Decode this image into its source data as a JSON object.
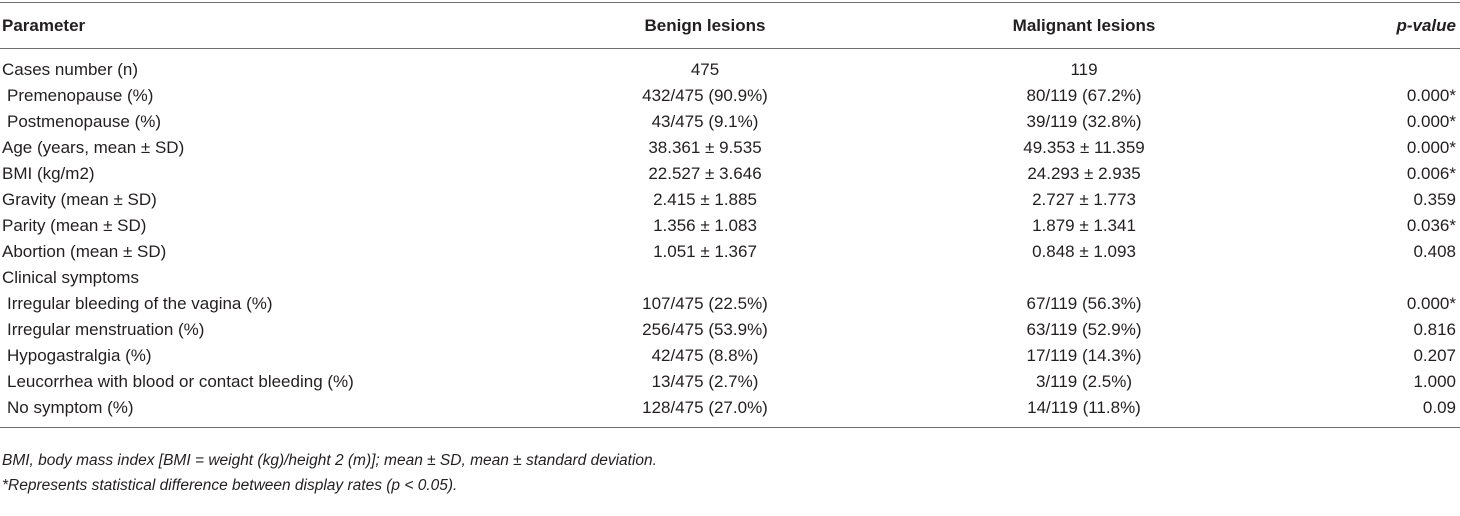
{
  "table": {
    "header": [
      "Parameter",
      "Benign lesions",
      "Malignant lesions",
      "p-value"
    ],
    "rows": [
      [
        "Cases number (n)",
        "475",
        "119"
      ],
      [
        "Premenopause (%)",
        "432/475 (90.9%)",
        "80/119 (67.2%)",
        "0.000*"
      ],
      [
        "Postmenopause (%)",
        "43/475 (9.1%)",
        "39/119 (32.8%)",
        "0.000*"
      ],
      [
        "Age (years, mean ± SD)",
        "38.361 ± 9.535",
        "49.353 ± 11.359",
        "0.000*"
      ],
      [
        "BMI (kg/m2)",
        "22.527 ± 3.646",
        "24.293 ± 2.935",
        "0.006*"
      ],
      [
        "Gravity (mean ± SD)",
        "2.415 ± 1.885",
        "2.727 ± 1.773",
        "0.359"
      ],
      [
        "Parity (mean ± SD)",
        "1.356 ± 1.083",
        "1.879 ± 1.341",
        "0.036*"
      ],
      [
        "Abortion (mean ± SD)",
        "1.051 ± 1.367",
        "0.848 ± 1.093",
        "0.408"
      ],
      [
        "Clinical symptoms"
      ],
      [
        "Irregular bleeding of the vagina (%)",
        "107/475 (22.5%)",
        "67/119 (56.3%)",
        "0.000*"
      ],
      [
        "Irregular menstruation (%)",
        "256/475 (53.9%)",
        "63/119 (52.9%)",
        "0.816"
      ],
      [
        "Hypogastralgia (%)",
        "42/475 (8.8%)",
        "17/119 (14.3%)",
        "0.207"
      ],
      [
        "Leucorrhea with blood or contact bleeding (%)",
        "13/475 (2.7%)",
        "3/119 (2.5%)",
        "1.000"
      ],
      [
        "No symptom (%)",
        "128/475 (27.0%)",
        "14/119 (11.8%)",
        "0.09"
      ]
    ],
    "footnotes": [
      "BMI, body mass index [BMI = weight (kg)/height 2 (m)]; mean ± SD, mean ± standard deviation.",
      "*Represents statistical difference between display rates (p < 0.05)."
    ]
  }
}
